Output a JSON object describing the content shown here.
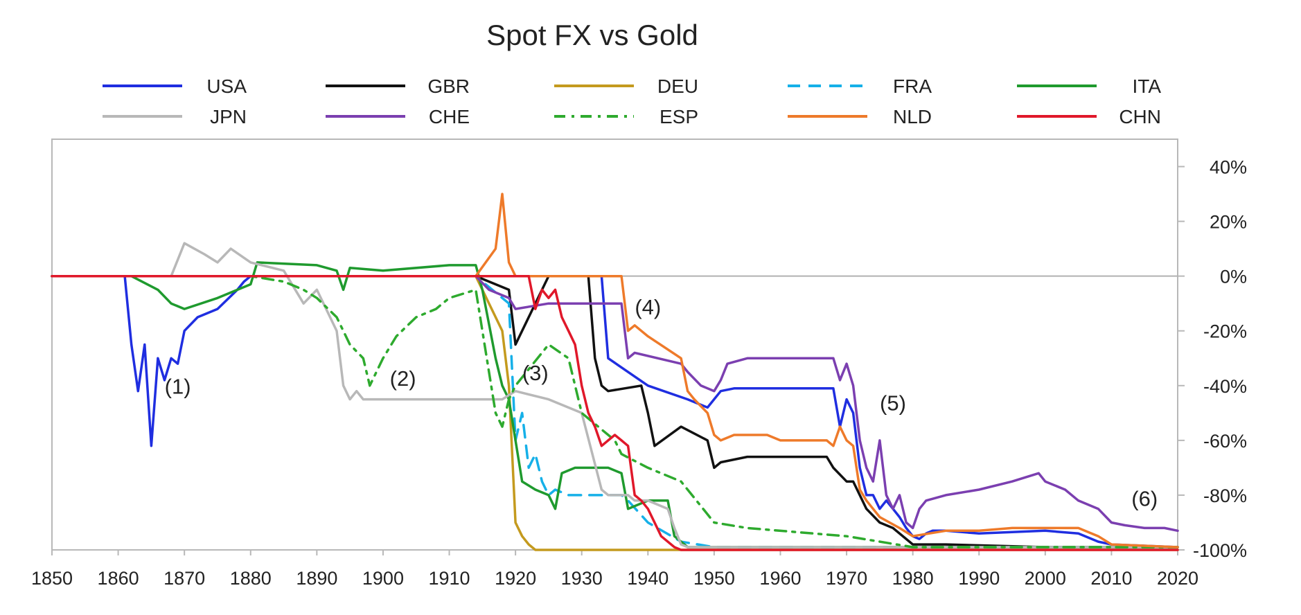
{
  "chart_data": {
    "type": "line",
    "title": "Spot FX vs Gold",
    "xlabel": "",
    "ylabel": "",
    "xlim": [
      1850,
      2020
    ],
    "ylim": [
      -100,
      50
    ],
    "x_ticks": [
      1850,
      1860,
      1870,
      1880,
      1890,
      1900,
      1910,
      1920,
      1930,
      1940,
      1950,
      1960,
      1970,
      1980,
      1990,
      2000,
      2010,
      2020
    ],
    "y_ticks": [
      40,
      20,
      0,
      -20,
      -40,
      -60,
      -80,
      -100
    ],
    "y_tick_labels": [
      "40%",
      "20%",
      "0%",
      "-20%",
      "-40%",
      "-60%",
      "-80%",
      "-100%"
    ],
    "y_axis_side": "right",
    "legend_position": "top",
    "series": [
      {
        "name": "USA",
        "color": "#1f2ee0",
        "dash": "solid",
        "x": [
          1850,
          1861,
          1862,
          1863,
          1864,
          1865,
          1866,
          1867,
          1868,
          1869,
          1870,
          1872,
          1875,
          1878,
          1879,
          1880,
          1933,
          1934,
          1940,
          1946,
          1949,
          1951,
          1953,
          1960,
          1968,
          1969,
          1970,
          1971,
          1972,
          1973,
          1974,
          1975,
          1976,
          1977,
          1978,
          1979,
          1980,
          1981,
          1982,
          1983,
          1985,
          1990,
          2000,
          2005,
          2008,
          2010,
          2020
        ],
        "y": [
          0,
          0,
          -25,
          -42,
          -25,
          -62,
          -30,
          -38,
          -30,
          -32,
          -20,
          -15,
          -12,
          -5,
          -2,
          0,
          0,
          -30,
          -40,
          -45,
          -48,
          -42,
          -41,
          -41,
          -41,
          -55,
          -45,
          -50,
          -70,
          -80,
          -80,
          -85,
          -82,
          -85,
          -88,
          -92,
          -95,
          -96,
          -94,
          -93,
          -93,
          -94,
          -93,
          -94,
          -97,
          -98,
          -99
        ]
      },
      {
        "name": "GBR",
        "color": "#111111",
        "dash": "solid",
        "x": [
          1850,
          1914,
          1919,
          1920,
          1925,
          1931,
          1932,
          1933,
          1934,
          1939,
          1940,
          1941,
          1945,
          1949,
          1950,
          1951,
          1955,
          1967,
          1968,
          1970,
          1971,
          1973,
          1975,
          1977,
          1980,
          1985,
          2000,
          2020
        ],
        "y": [
          0,
          0,
          -5,
          -25,
          0,
          0,
          -30,
          -40,
          -42,
          -40,
          -50,
          -62,
          -55,
          -60,
          -70,
          -68,
          -66,
          -66,
          -70,
          -75,
          -75,
          -85,
          -90,
          -92,
          -98,
          -98,
          -99,
          -99
        ]
      },
      {
        "name": "DEU",
        "color": "#c49a1e",
        "dash": "solid",
        "x": [
          1850,
          1914,
          1916,
          1918,
          1919,
          1920,
          1921,
          1922,
          1923,
          1930,
          2020
        ],
        "y": [
          0,
          0,
          -10,
          -20,
          -40,
          -90,
          -95,
          -98,
          -100,
          -100,
          -100
        ]
      },
      {
        "name": "FRA",
        "color": "#16b0e8",
        "dash": "dash",
        "x": [
          1850,
          1914,
          1919,
          1920,
          1921,
          1922,
          1923,
          1924,
          1925,
          1926,
          1928,
          1936,
          1937,
          1940,
          1945,
          1950,
          1958,
          1960,
          1970,
          1980,
          2000,
          2020
        ],
        "y": [
          0,
          0,
          -10,
          -60,
          -50,
          -70,
          -65,
          -75,
          -80,
          -78,
          -80,
          -80,
          -82,
          -90,
          -97,
          -99,
          -99,
          -99,
          -99,
          -99,
          -99,
          -99
        ]
      },
      {
        "name": "ITA",
        "color": "#1f9a2e",
        "dash": "solid",
        "x": [
          1850,
          1862,
          1866,
          1868,
          1870,
          1875,
          1880,
          1881,
          1890,
          1893,
          1894,
          1895,
          1900,
          1910,
          1914,
          1915,
          1917,
          1918,
          1919,
          1920,
          1921,
          1923,
          1925,
          1926,
          1927,
          1929,
          1934,
          1936,
          1937,
          1940,
          1943,
          1944,
          1946,
          1947,
          1950,
          2020
        ],
        "y": [
          0,
          0,
          -5,
          -10,
          -12,
          -8,
          -3,
          5,
          4,
          2,
          -5,
          3,
          2,
          4,
          4,
          -5,
          -30,
          -40,
          -45,
          -60,
          -75,
          -78,
          -80,
          -85,
          -72,
          -70,
          -70,
          -72,
          -85,
          -82,
          -82,
          -95,
          -99,
          -99,
          -99,
          -99
        ]
      },
      {
        "name": "JPN",
        "color": "#b8b8b8",
        "dash": "solid",
        "x": [
          1850,
          1868,
          1870,
          1873,
          1875,
          1877,
          1880,
          1885,
          1888,
          1890,
          1892,
          1893,
          1894,
          1895,
          1896,
          1897,
          1900,
          1917,
          1918,
          1920,
          1925,
          1930,
          1933,
          1934,
          1937,
          1938,
          1940,
          1943,
          1944,
          1945,
          1946,
          2020
        ],
        "y": [
          0,
          0,
          12,
          8,
          5,
          10,
          5,
          2,
          -10,
          -5,
          -15,
          -20,
          -40,
          -45,
          -42,
          -45,
          -45,
          -45,
          -45,
          -42,
          -45,
          -50,
          -78,
          -80,
          -80,
          -82,
          -82,
          -85,
          -92,
          -98,
          -99,
          -99
        ]
      },
      {
        "name": "CHE",
        "color": "#7b3fb0",
        "dash": "solid",
        "x": [
          1850,
          1914,
          1916,
          1919,
          1920,
          1925,
          1936,
          1937,
          1938,
          1945,
          1946,
          1948,
          1950,
          1951,
          1952,
          1955,
          1960,
          1965,
          1968,
          1969,
          1970,
          1971,
          1972,
          1973,
          1974,
          1975,
          1976,
          1977,
          1978,
          1979,
          1980,
          1981,
          1982,
          1985,
          1990,
          1995,
          1999,
          2000,
          2003,
          2005,
          2008,
          2010,
          2012,
          2015,
          2018,
          2020
        ],
        "y": [
          0,
          0,
          -5,
          -8,
          -12,
          -10,
          -10,
          -30,
          -28,
          -32,
          -35,
          -40,
          -42,
          -38,
          -32,
          -30,
          -30,
          -30,
          -30,
          -38,
          -32,
          -40,
          -60,
          -70,
          -75,
          -60,
          -80,
          -85,
          -80,
          -90,
          -92,
          -85,
          -82,
          -80,
          -78,
          -75,
          -72,
          -75,
          -78,
          -82,
          -85,
          -90,
          -91,
          -92,
          -92,
          -93
        ]
      },
      {
        "name": "ESP",
        "color": "#2eaa2e",
        "dash": "dashdot",
        "x": [
          1850,
          1880,
          1885,
          1888,
          1890,
          1893,
          1895,
          1897,
          1898,
          1900,
          1902,
          1905,
          1908,
          1910,
          1914,
          1915,
          1917,
          1918,
          1919,
          1920,
          1925,
          1928,
          1930,
          1935,
          1936,
          1940,
          1945,
          1950,
          1955,
          1965,
          1970,
          1975,
          1980,
          1990,
          2000,
          2020
        ],
        "y": [
          0,
          0,
          -2,
          -5,
          -8,
          -15,
          -25,
          -30,
          -40,
          -30,
          -22,
          -15,
          -12,
          -8,
          -5,
          -20,
          -50,
          -55,
          -45,
          -40,
          -25,
          -30,
          -50,
          -60,
          -65,
          -70,
          -75,
          -90,
          -92,
          -94,
          -95,
          -97,
          -99,
          -99,
          -99,
          -99
        ]
      },
      {
        "name": "NLD",
        "color": "#ee7a2a",
        "dash": "solid",
        "x": [
          1850,
          1914,
          1917,
          1918,
          1919,
          1920,
          1925,
          1936,
          1937,
          1938,
          1939,
          1940,
          1945,
          1946,
          1947,
          1949,
          1950,
          1951,
          1953,
          1958,
          1960,
          1967,
          1968,
          1969,
          1970,
          1971,
          1972,
          1973,
          1974,
          1975,
          1978,
          1980,
          1985,
          1990,
          1995,
          2000,
          2005,
          2008,
          2010,
          2020
        ],
        "y": [
          0,
          0,
          10,
          30,
          5,
          0,
          0,
          0,
          -20,
          -18,
          -20,
          -22,
          -30,
          -42,
          -45,
          -50,
          -58,
          -60,
          -58,
          -58,
          -60,
          -60,
          -62,
          -55,
          -60,
          -62,
          -78,
          -82,
          -85,
          -88,
          -92,
          -95,
          -93,
          -93,
          -92,
          -92,
          -92,
          -95,
          -98,
          -99
        ]
      },
      {
        "name": "CHN",
        "color": "#e0182a",
        "dash": "solid",
        "x": [
          1850,
          1922,
          1923,
          1924,
          1925,
          1926,
          1927,
          1928,
          1929,
          1930,
          1931,
          1932,
          1933,
          1934,
          1935,
          1936,
          1937,
          1938,
          1939,
          1940,
          1941,
          1942,
          1944,
          1945,
          2020
        ],
        "y": [
          0,
          0,
          -12,
          -5,
          -8,
          -5,
          -15,
          -20,
          -25,
          -40,
          -50,
          -55,
          -62,
          -60,
          -58,
          -60,
          -62,
          -80,
          -82,
          -85,
          -90,
          -95,
          -99,
          -100,
          -100
        ]
      }
    ],
    "annotations": [
      {
        "label": "(1)",
        "x": 1869,
        "y": -43
      },
      {
        "label": "(2)",
        "x": 1903,
        "y": -40
      },
      {
        "label": "(3)",
        "x": 1923,
        "y": -38
      },
      {
        "label": "(4)",
        "x": 1940,
        "y": -14
      },
      {
        "label": "(5)",
        "x": 1977,
        "y": -49
      },
      {
        "label": "(6)",
        "x": 2015,
        "y": -84
      }
    ]
  }
}
